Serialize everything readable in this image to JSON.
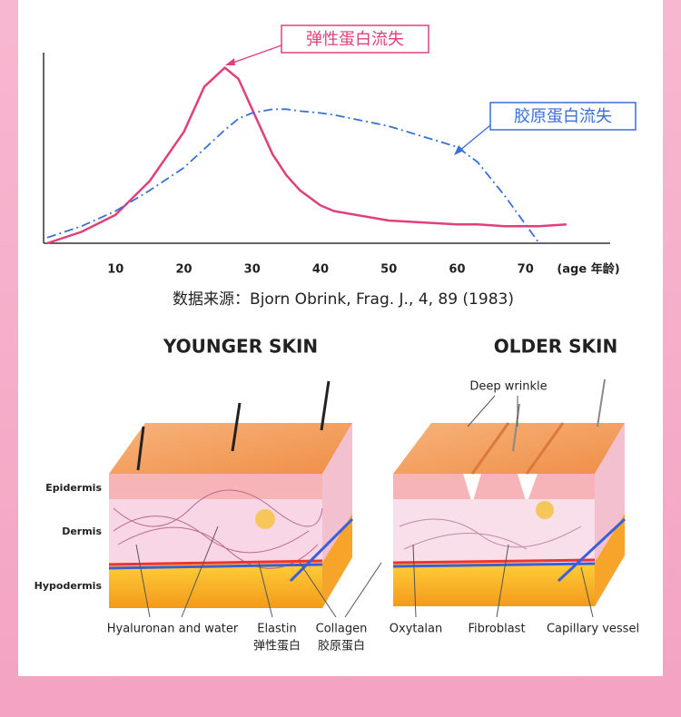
{
  "chart_data": {
    "type": "line",
    "x_label": "(age 年龄)",
    "x": [
      0,
      5,
      10,
      15,
      20,
      23,
      26,
      28,
      30,
      33,
      35,
      37,
      40,
      42,
      50,
      60,
      63,
      67,
      70,
      72,
      76
    ],
    "series": [
      {
        "name": "弹性蛋白流失",
        "color": "#e0407a",
        "style": "solid",
        "values": [
          0,
          6,
          15,
          33,
          59,
          83,
          93,
          87,
          71,
          47,
          36,
          28,
          20,
          17,
          12,
          10,
          10,
          9,
          9,
          9,
          10
        ]
      },
      {
        "name": "胶原蛋白流失",
        "color": "#3a6fd8",
        "style": "dashdot",
        "values": [
          3,
          9,
          17,
          28,
          40,
          50,
          60,
          66,
          69,
          71,
          71,
          70,
          69,
          68,
          62,
          51,
          43,
          25,
          10,
          0,
          null
        ]
      }
    ],
    "xlim": [
      0,
      82
    ],
    "xticks": [
      10,
      20,
      30,
      40,
      50,
      60,
      70
    ],
    "ylim": [
      0,
      100
    ],
    "grid": false,
    "source": "数据来源：Bjorn Obrink, Frag. J., 4, 89 (1983)"
  },
  "illustration": {
    "younger_title": "YOUNGER SKIN",
    "older_title": "OLDER SKIN",
    "deep_wrinkle": "Deep wrinkle",
    "layers": [
      "Epidermis",
      "Dermis",
      "Hypodermis"
    ],
    "labels": [
      "Hyaluronan and water",
      "Elastin",
      "弹性蛋白",
      "Collagen",
      "胶原蛋白",
      "Oxytalan",
      "Fibroblast",
      "Capillary vessel"
    ]
  }
}
